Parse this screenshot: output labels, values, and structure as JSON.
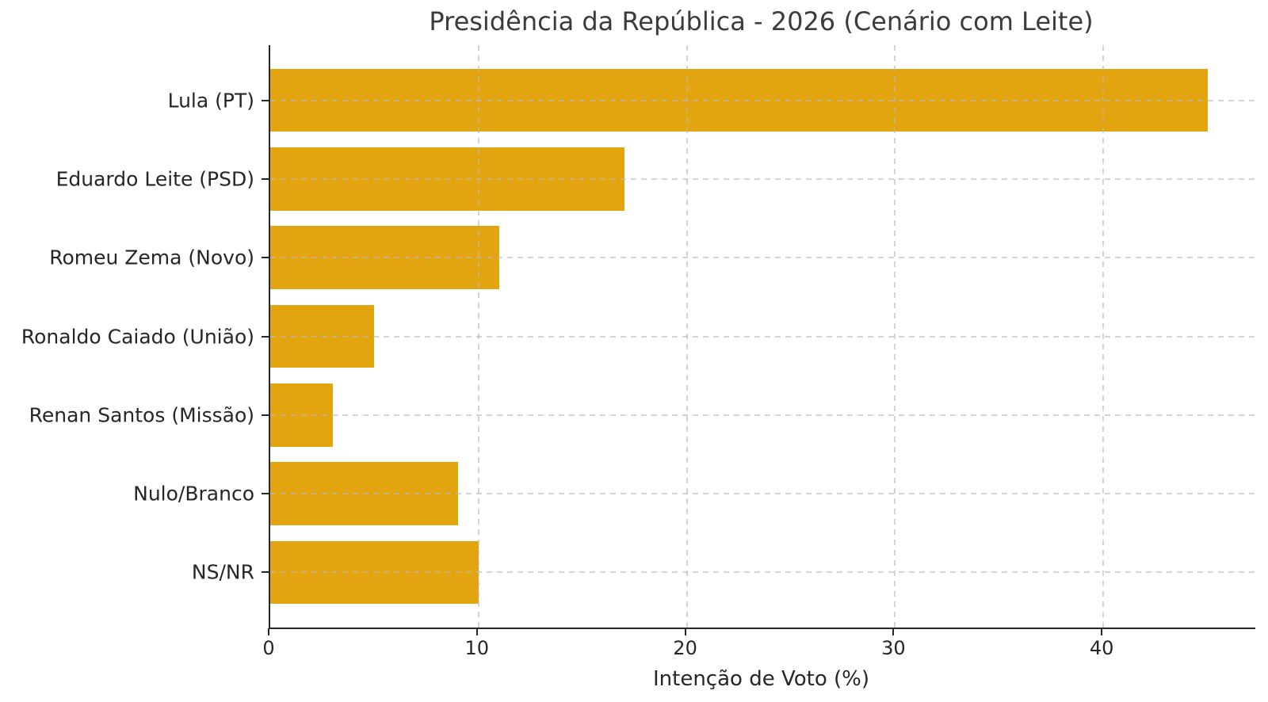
{
  "chart_data": {
    "type": "bar",
    "orientation": "horizontal",
    "title": "Presidência da República - 2026 (Cenário com Leite)",
    "xlabel": "Intenção de Voto (%)",
    "categories": [
      "Lula (PT)",
      "Eduardo Leite (PSD)",
      "Romeu Zema (Novo)",
      "Ronaldo Caiado (União)",
      "Renan Santos (Missão)",
      "Nulo/Branco",
      "NS/NR"
    ],
    "values": [
      45,
      17,
      11,
      5,
      3,
      9,
      10
    ],
    "xticks": [
      0,
      10,
      20,
      30,
      40
    ],
    "xlim": [
      0,
      47.3
    ],
    "grid": true,
    "legend": "none",
    "bar_color": "#E2A50F",
    "spine_color": "#262626",
    "grid_color": "#cccccc",
    "text_color": "#3b3b3b",
    "background_color": "#ffffff"
  }
}
